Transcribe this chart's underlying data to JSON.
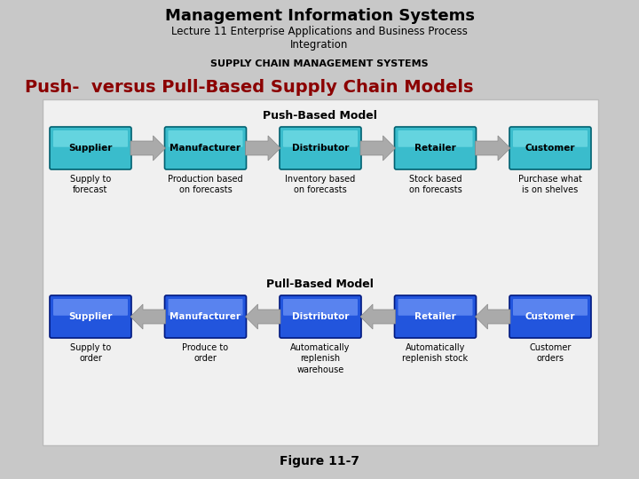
{
  "title": "Management Information Systems",
  "subtitle": "Lecture 11 Enterprise Applications and Business Process\nIntegration",
  "section_label": "SUPPLY CHAIN MANAGEMENT SYSTEMS",
  "main_heading": "Push-  versus Pull-Based Supply Chain Models",
  "push_label": "Push-Based Model",
  "pull_label": "Pull-Based Model",
  "figure_label": "Figure 11-7",
  "nodes": [
    "Supplier",
    "Manufacturer",
    "Distributor",
    "Retailer",
    "Customer"
  ],
  "push_captions": [
    "Supply to\nforecast",
    "Production based\non forecasts",
    "Inventory based\non forecasts",
    "Stock based\non forecasts",
    "Purchase what\nis on shelves"
  ],
  "pull_captions": [
    "Supply to\norder",
    "Produce to\norder",
    "Automatically\nreplenish\nwarehouse",
    "Automatically\nreplenish stock",
    "Customer\norders"
  ],
  "bg_color": "#c8c8c8",
  "diagram_bg": "#f0f0f0",
  "title_color": "#000000",
  "heading_color": "#8b0000",
  "arrow_color": "#aaaaaa",
  "push_box_fill": "#3abccc",
  "push_box_highlight": "#88e8f0",
  "push_box_edge": "#006070",
  "push_text_color": "#000000",
  "pull_box_fill": "#2255dd",
  "pull_box_highlight": "#88aaff",
  "pull_box_edge": "#001880",
  "pull_text_color": "#ffffff"
}
